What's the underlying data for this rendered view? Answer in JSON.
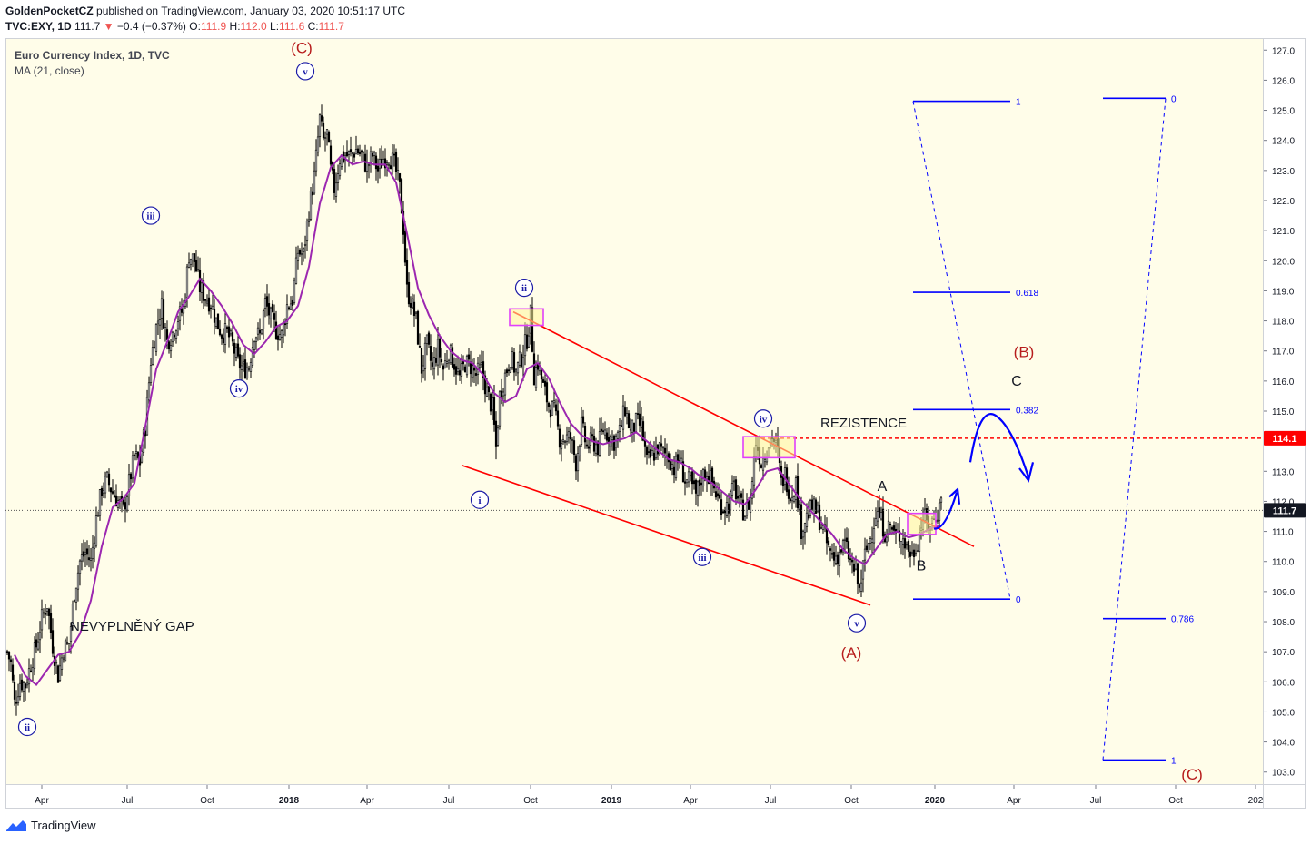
{
  "header": {
    "line1_author": "GoldenPocketCZ",
    "line1_rest": "published on TradingView.com, January 03, 2020 10:51:17 UTC",
    "symbol": "TVC:EXY, 1D",
    "last": "111.7",
    "change_arrow": "▼",
    "change": "−0.4 (−0.37%)",
    "o_label": "O:",
    "o_val": "111.9",
    "h_label": "H:",
    "h_val": "112.0",
    "l_label": "L:",
    "l_val": "111.6",
    "c_label": "C:",
    "c_val": "111.7"
  },
  "legend": {
    "title": "Euro Currency Index, 1D, TVC",
    "indicator": "MA (21, close)"
  },
  "footer": {
    "brand": "TradingView"
  },
  "colors": {
    "background": "#fffde9",
    "candle": "#000000",
    "ma": "#9c27b0",
    "trend": "#ff0000",
    "wave": "#1a1aa6",
    "fib": "#0000ff",
    "red_label": "#b71c1c",
    "box_fill": "#fff59d",
    "box_stroke": "#e040fb"
  },
  "chart_data": {
    "type": "candlestick",
    "ylim": [
      102.6,
      127.4
    ],
    "y_ticks": [
      "103.0",
      "104.0",
      "105.0",
      "106.0",
      "107.0",
      "108.0",
      "109.0",
      "110.0",
      "111.0",
      "112.0",
      "113.0",
      "114.0",
      "115.0",
      "116.0",
      "117.0",
      "118.0",
      "119.0",
      "120.0",
      "121.0",
      "122.0",
      "123.0",
      "124.0",
      "125.0",
      "126.0",
      "127.0"
    ],
    "x_ticks": [
      "Apr",
      "Jul",
      "Oct",
      "2018",
      "Apr",
      "Jul",
      "Oct",
      "2019",
      "Apr",
      "Jul",
      "Oct",
      "2020",
      "Apr",
      "Jul",
      "Oct",
      "202"
    ],
    "x_ticks_bold": [
      "2018",
      "2019",
      "2020"
    ],
    "price_label": "111.7",
    "resistance_label": "114.1",
    "resistance_level": 114.1,
    "current_price": 111.7,
    "price_path": [
      [
        0,
        107.0
      ],
      [
        4,
        106.6
      ],
      [
        8,
        105.3
      ],
      [
        14,
        106.0
      ],
      [
        20,
        105.9
      ],
      [
        26,
        106.6
      ],
      [
        32,
        107.2
      ],
      [
        38,
        108.1
      ],
      [
        44,
        108.6
      ],
      [
        50,
        107.2
      ],
      [
        56,
        106.2
      ],
      [
        62,
        107.1
      ],
      [
        68,
        107.3
      ],
      [
        74,
        109.0
      ],
      [
        80,
        110.0
      ],
      [
        86,
        110.3
      ],
      [
        92,
        110.0
      ],
      [
        98,
        111.4
      ],
      [
        104,
        112.4
      ],
      [
        110,
        112.7
      ],
      [
        116,
        112.3
      ],
      [
        122,
        112.0
      ],
      [
        128,
        111.7
      ],
      [
        134,
        112.6
      ],
      [
        140,
        113.5
      ],
      [
        146,
        113.3
      ],
      [
        152,
        114.5
      ],
      [
        158,
        116.7
      ],
      [
        164,
        117.8
      ],
      [
        170,
        118.5
      ],
      [
        176,
        117.3
      ],
      [
        182,
        117.6
      ],
      [
        188,
        118.1
      ],
      [
        194,
        118.4
      ],
      [
        200,
        120.2
      ],
      [
        206,
        120.0
      ],
      [
        212,
        119.1
      ],
      [
        218,
        118.8
      ],
      [
        224,
        118.6
      ],
      [
        230,
        118.0
      ],
      [
        236,
        117.6
      ],
      [
        242,
        117.6
      ],
      [
        248,
        117.2
      ],
      [
        254,
        116.6
      ],
      [
        260,
        116.4
      ],
      [
        266,
        116.5
      ],
      [
        272,
        117.6
      ],
      [
        278,
        117.5
      ],
      [
        284,
        118.6
      ],
      [
        290,
        118.1
      ],
      [
        296,
        117.7
      ],
      [
        302,
        117.5
      ],
      [
        308,
        118.5
      ],
      [
        314,
        118.7
      ],
      [
        320,
        120.3
      ],
      [
        326,
        120.2
      ],
      [
        332,
        121.7
      ],
      [
        338,
        122.8
      ],
      [
        344,
        124.7
      ],
      [
        348,
        124.0
      ],
      [
        352,
        124.2
      ],
      [
        356,
        123.0
      ],
      [
        360,
        122.4
      ],
      [
        366,
        123.4
      ],
      [
        372,
        123.5
      ],
      [
        378,
        123.5
      ],
      [
        384,
        123.7
      ],
      [
        390,
        123.5
      ],
      [
        396,
        123.1
      ],
      [
        402,
        123.5
      ],
      [
        408,
        123.0
      ],
      [
        414,
        123.4
      ],
      [
        420,
        123.5
      ],
      [
        426,
        123.2
      ],
      [
        432,
        122.4
      ],
      [
        436,
        121.1
      ],
      [
        440,
        119.0
      ],
      [
        444,
        118.7
      ],
      [
        450,
        118.0
      ],
      [
        456,
        116.4
      ],
      [
        462,
        117.2
      ],
      [
        468,
        116.4
      ],
      [
        474,
        117.1
      ],
      [
        480,
        116.4
      ],
      [
        486,
        117.0
      ],
      [
        492,
        116.6
      ],
      [
        498,
        116.1
      ],
      [
        504,
        116.6
      ],
      [
        510,
        116.5
      ],
      [
        516,
        116.2
      ],
      [
        522,
        116.4
      ],
      [
        528,
        115.6
      ],
      [
        534,
        115.1
      ],
      [
        538,
        113.8
      ],
      [
        542,
        115.5
      ],
      [
        548,
        116.2
      ],
      [
        554,
        116.8
      ],
      [
        560,
        116.3
      ],
      [
        566,
        116.8
      ],
      [
        572,
        117.4
      ],
      [
        576,
        118.2
      ],
      [
        580,
        116.2
      ],
      [
        584,
        116.6
      ],
      [
        590,
        115.8
      ],
      [
        596,
        115.2
      ],
      [
        602,
        115.0
      ],
      [
        608,
        114.1
      ],
      [
        614,
        114.1
      ],
      [
        620,
        114.1
      ],
      [
        626,
        113.3
      ],
      [
        632,
        114.5
      ],
      [
        638,
        113.8
      ],
      [
        644,
        114.0
      ],
      [
        650,
        113.8
      ],
      [
        656,
        114.4
      ],
      [
        662,
        114.2
      ],
      [
        668,
        114.0
      ],
      [
        674,
        114.3
      ],
      [
        680,
        115.1
      ],
      [
        686,
        114.3
      ],
      [
        692,
        114.6
      ],
      [
        698,
        114.5
      ],
      [
        704,
        113.3
      ],
      [
        710,
        113.5
      ],
      [
        716,
        113.8
      ],
      [
        722,
        113.6
      ],
      [
        728,
        113.5
      ],
      [
        734,
        113.1
      ],
      [
        740,
        113.4
      ],
      [
        746,
        112.7
      ],
      [
        752,
        112.6
      ],
      [
        758,
        112.2
      ],
      [
        764,
        112.8
      ],
      [
        770,
        113.0
      ],
      [
        776,
        112.6
      ],
      [
        782,
        112.1
      ],
      [
        788,
        111.8
      ],
      [
        794,
        111.9
      ],
      [
        800,
        112.5
      ],
      [
        806,
        111.9
      ],
      [
        812,
        111.6
      ],
      [
        818,
        112.1
      ],
      [
        824,
        114.0
      ],
      [
        830,
        113.3
      ],
      [
        836,
        113.8
      ],
      [
        842,
        114.2
      ],
      [
        848,
        113.6
      ],
      [
        852,
        112.6
      ],
      [
        856,
        112.9
      ],
      [
        862,
        112.2
      ],
      [
        868,
        112.6
      ],
      [
        874,
        111.1
      ],
      [
        880,
        111.5
      ],
      [
        886,
        111.8
      ],
      [
        892,
        111.6
      ],
      [
        898,
        111.0
      ],
      [
        904,
        110.4
      ],
      [
        910,
        110.1
      ],
      [
        916,
        110.3
      ],
      [
        922,
        110.6
      ],
      [
        928,
        110.0
      ],
      [
        934,
        109.6
      ],
      [
        938,
        109.0
      ],
      [
        944,
        110.2
      ],
      [
        950,
        110.8
      ],
      [
        956,
        111.6
      ],
      [
        960,
        111.5
      ],
      [
        966,
        111.0
      ],
      [
        972,
        111.2
      ],
      [
        978,
        110.8
      ],
      [
        984,
        110.9
      ],
      [
        990,
        110.5
      ],
      [
        996,
        110.2
      ],
      [
        1002,
        110.7
      ],
      [
        1008,
        111.5
      ],
      [
        1014,
        111.2
      ],
      [
        1020,
        111.4
      ],
      [
        1026,
        111.8
      ],
      [
        1028,
        112.3
      ]
    ],
    "ma_path": [
      [
        8,
        106.9
      ],
      [
        20,
        106.2
      ],
      [
        32,
        105.9
      ],
      [
        44,
        106.4
      ],
      [
        56,
        106.9
      ],
      [
        68,
        107.0
      ],
      [
        80,
        107.6
      ],
      [
        92,
        108.7
      ],
      [
        104,
        110.5
      ],
      [
        116,
        111.8
      ],
      [
        128,
        112.1
      ],
      [
        140,
        112.6
      ],
      [
        152,
        114.5
      ],
      [
        164,
        116.4
      ],
      [
        176,
        117.3
      ],
      [
        188,
        118.3
      ],
      [
        200,
        118.8
      ],
      [
        212,
        119.4
      ],
      [
        224,
        119.0
      ],
      [
        236,
        118.5
      ],
      [
        248,
        117.9
      ],
      [
        260,
        117.2
      ],
      [
        272,
        116.9
      ],
      [
        284,
        117.3
      ],
      [
        296,
        117.8
      ],
      [
        308,
        118.0
      ],
      [
        320,
        118.5
      ],
      [
        332,
        119.8
      ],
      [
        344,
        121.9
      ],
      [
        356,
        123.1
      ],
      [
        368,
        123.5
      ],
      [
        380,
        123.2
      ],
      [
        392,
        123.3
      ],
      [
        404,
        123.2
      ],
      [
        416,
        123.2
      ],
      [
        428,
        122.6
      ],
      [
        440,
        120.9
      ],
      [
        452,
        119.1
      ],
      [
        464,
        118.2
      ],
      [
        476,
        117.5
      ],
      [
        488,
        117.0
      ],
      [
        500,
        116.7
      ],
      [
        512,
        116.6
      ],
      [
        524,
        116.2
      ],
      [
        536,
        115.6
      ],
      [
        548,
        115.3
      ],
      [
        560,
        115.5
      ],
      [
        572,
        116.4
      ],
      [
        584,
        116.6
      ],
      [
        596,
        116.1
      ],
      [
        608,
        115.3
      ],
      [
        620,
        114.6
      ],
      [
        632,
        114.2
      ],
      [
        644,
        114.0
      ],
      [
        656,
        113.9
      ],
      [
        668,
        114.0
      ],
      [
        680,
        114.1
      ],
      [
        692,
        114.3
      ],
      [
        704,
        114.0
      ],
      [
        716,
        113.7
      ],
      [
        728,
        113.4
      ],
      [
        740,
        113.3
      ],
      [
        752,
        113.1
      ],
      [
        764,
        112.8
      ],
      [
        776,
        112.6
      ],
      [
        788,
        112.3
      ],
      [
        800,
        112.0
      ],
      [
        812,
        111.9
      ],
      [
        824,
        112.4
      ],
      [
        836,
        113.0
      ],
      [
        848,
        113.1
      ],
      [
        860,
        112.6
      ],
      [
        872,
        112.1
      ],
      [
        884,
        111.7
      ],
      [
        896,
        111.3
      ],
      [
        908,
        110.9
      ],
      [
        920,
        110.4
      ],
      [
        932,
        110.1
      ],
      [
        944,
        109.9
      ],
      [
        956,
        110.4
      ],
      [
        968,
        110.9
      ],
      [
        980,
        111.0
      ],
      [
        992,
        110.8
      ],
      [
        1004,
        110.9
      ],
      [
        1016,
        111.1
      ],
      [
        1028,
        111.2
      ]
    ],
    "elliott_labels": {
      "circled": [
        "ii",
        "iii",
        "iv",
        "v",
        "ii",
        "i",
        "iii",
        "iv",
        "v"
      ],
      "red": [
        "(C)",
        "(A)",
        "(B)",
        "(C)"
      ],
      "plain": [
        "A",
        "B",
        "C"
      ]
    },
    "text_annotations": [
      "REZISTENCE",
      "NEVYPLNĚNÝ GAP"
    ],
    "fib_left": [
      {
        "level": "1",
        "value": 125.3
      },
      {
        "level": "0.618",
        "value": 118.95
      },
      {
        "level": "0.382",
        "value": 115.05
      },
      {
        "level": "0",
        "value": 108.75
      }
    ],
    "fib_right": [
      {
        "level": "0",
        "value": 125.4
      },
      {
        "level": "0.786",
        "value": 108.1
      },
      {
        "level": "1",
        "value": 103.4
      }
    ]
  }
}
